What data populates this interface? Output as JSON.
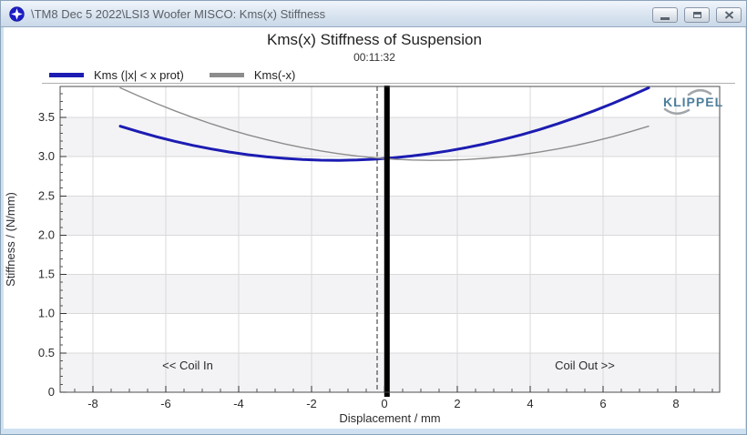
{
  "window": {
    "title": "\\TM8 Dec 5 2022\\LSI3 Woofer MISCO: Kms(x) Stiffness"
  },
  "chart": {
    "title": "Kms(x) Stiffness of Suspension",
    "time": "00:11:32",
    "legend": [
      {
        "label": "Kms (|x| < x prot)",
        "color": "#1c1cb2"
      },
      {
        "label": "Kms(-x)",
        "color": "#8c8c8c"
      }
    ]
  },
  "chart_data": {
    "type": "line",
    "title": "Kms(x) Stiffness of Suspension",
    "subtitle": "00:11:32",
    "xlabel": "Displacement / mm",
    "ylabel": "Stiffness / (N/mm)",
    "xlim": [
      -8.9,
      9.2
    ],
    "ylim": [
      0,
      3.894
    ],
    "x_ticks": [
      -8,
      -6,
      -4,
      -2,
      0,
      2,
      4,
      6,
      8
    ],
    "x_minor_step": 0.5,
    "y_ticks": [
      0,
      0.5,
      1,
      1.5,
      2,
      2.5,
      3,
      3.5
    ],
    "y_tick_labels": [
      "0",
      "0.5",
      "1.0",
      "1.5",
      "2.0",
      "2.5",
      "3.0",
      "3.5"
    ],
    "y_minor_step": 0.1,
    "grid": true,
    "legend_position": "top-left",
    "band_color": "#f3f3f5",
    "bands": [
      [
        3.0,
        3.5
      ],
      [
        2.0,
        2.5
      ],
      [
        1.0,
        1.5
      ],
      [
        0,
        0.5
      ]
    ],
    "series": [
      {
        "name": "Kms (|x| < x prot)",
        "color": "#1c1cb2",
        "width": 3,
        "x": [
          -7.25,
          -6.75,
          -6.25,
          -5.75,
          -5.25,
          -4.75,
          -4.25,
          -3.75,
          -3.25,
          -2.75,
          -2.25,
          -1.75,
          -1.25,
          -0.75,
          -0.25,
          0.25,
          0.75,
          1.25,
          1.75,
          2.25,
          2.75,
          3.25,
          3.75,
          4.25,
          4.75,
          5.25,
          5.75,
          6.25,
          6.75,
          7.25
        ],
        "y": [
          3.388,
          3.318,
          3.253,
          3.195,
          3.143,
          3.098,
          3.058,
          3.025,
          2.998,
          2.978,
          2.963,
          2.955,
          2.953,
          2.958,
          2.968,
          2.985,
          3.008,
          3.038,
          3.073,
          3.115,
          3.163,
          3.218,
          3.278,
          3.345,
          3.418,
          3.498,
          3.583,
          3.675,
          3.773,
          3.877
        ]
      },
      {
        "name": "Kms(-x)",
        "color": "#8c8c8c",
        "width": 1.4,
        "x": [
          -7.25,
          -6.75,
          -6.25,
          -5.75,
          -5.25,
          -4.75,
          -4.25,
          -3.75,
          -3.25,
          -2.75,
          -2.25,
          -1.75,
          -1.25,
          -0.75,
          -0.25,
          0.25,
          0.75,
          1.25,
          1.75,
          2.25,
          2.75,
          3.25,
          3.75,
          4.25,
          4.75,
          5.25,
          5.75,
          6.25,
          6.75,
          7.25
        ],
        "y": [
          3.877,
          3.773,
          3.675,
          3.583,
          3.498,
          3.418,
          3.345,
          3.278,
          3.218,
          3.163,
          3.115,
          3.073,
          3.038,
          3.008,
          2.985,
          2.968,
          2.958,
          2.953,
          2.955,
          2.963,
          2.978,
          2.998,
          3.025,
          3.058,
          3.098,
          3.143,
          3.195,
          3.253,
          3.318,
          3.388
        ]
      }
    ],
    "markers": {
      "dashed_line_x": -0.2,
      "protection_bar_x": 0.07
    },
    "annotations": [
      {
        "text": "<< Coil In",
        "x": -5.4,
        "y": 0.29
      },
      {
        "text": "Coil Out >>",
        "x": 5.5,
        "y": 0.29
      }
    ],
    "logo_text": "KLIPPEL"
  }
}
